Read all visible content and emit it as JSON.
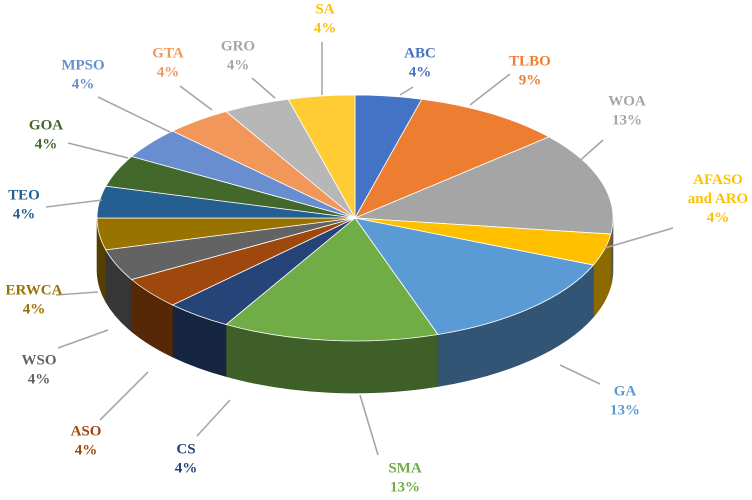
{
  "chart_data": {
    "type": "pie",
    "style": "3d-exploded-perspective",
    "slices": [
      {
        "name": "ABC",
        "value": 4,
        "pct_label": "4%",
        "color": "#4472C4"
      },
      {
        "name": "TLBO",
        "value": 9,
        "pct_label": "9%",
        "color": "#ED7D31"
      },
      {
        "name": "WOA",
        "value": 13,
        "pct_label": "13%",
        "color": "#A5A5A5"
      },
      {
        "name": "AFASO and ARO",
        "value": 4,
        "pct_label": "4%",
        "color": "#FFC000"
      },
      {
        "name": "GA",
        "value": 13,
        "pct_label": "13%",
        "color": "#5B9BD5"
      },
      {
        "name": "SMA",
        "value": 13,
        "pct_label": "13%",
        "color": "#70AD47"
      },
      {
        "name": "CS",
        "value": 4,
        "pct_label": "4%",
        "color": "#264478"
      },
      {
        "name": "ASO",
        "value": 4,
        "pct_label": "4%",
        "color": "#9E480E"
      },
      {
        "name": "WSO",
        "value": 4,
        "pct_label": "4%",
        "color": "#636363"
      },
      {
        "name": "ERWCA",
        "value": 4,
        "pct_label": "4%",
        "color": "#997300"
      },
      {
        "name": "TEO",
        "value": 4,
        "pct_label": "4%",
        "color": "#255E91"
      },
      {
        "name": "GOA",
        "value": 4,
        "pct_label": "4%",
        "color": "#43682B"
      },
      {
        "name": "MPSO",
        "value": 4,
        "pct_label": "4%",
        "color": "#698ED0"
      },
      {
        "name": "GTA",
        "value": 4,
        "pct_label": "4%",
        "color": "#F1975A"
      },
      {
        "name": "GRO",
        "value": 4,
        "pct_label": "4%",
        "color": "#B7B7B7"
      },
      {
        "name": "SA",
        "value": 4,
        "pct_label": "4%",
        "color": "#FFCD33"
      }
    ],
    "label_colors": {
      "ABC": "#4472C4",
      "TLBO": "#ED7D31",
      "WOA": "#A5A5A5",
      "AFASO and ARO": "#FFC000",
      "GA": "#5B9BD5",
      "SMA": "#70AD47",
      "CS": "#264478",
      "ASO": "#9E480E",
      "WSO": "#636363",
      "ERWCA": "#997300",
      "TEO": "#255E91",
      "GOA": "#43682B",
      "MPSO": "#698ED0",
      "GTA": "#F1975A",
      "GRO": "#A5A5A5",
      "SA": "#FFC000"
    },
    "leader_line_color": "#A6A6A6"
  }
}
